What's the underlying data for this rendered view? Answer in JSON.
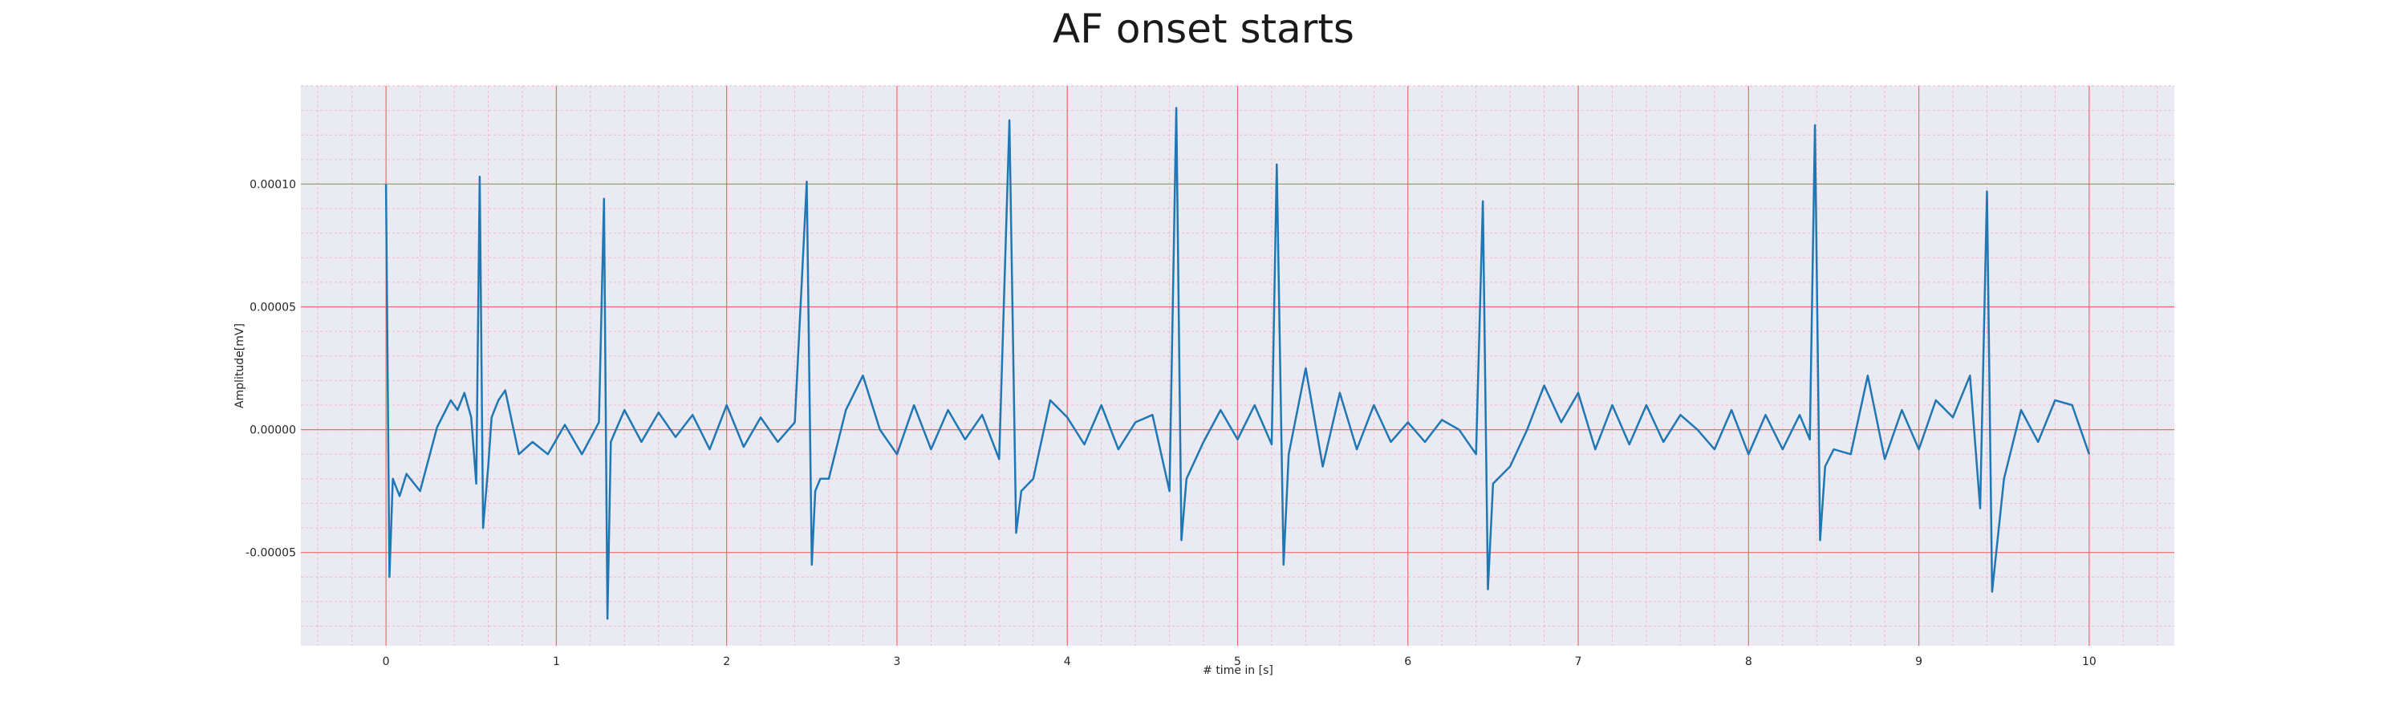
{
  "chart_data": {
    "type": "line",
    "title": "AF onset starts",
    "xlabel": "# time in [s]",
    "ylabel": "Amplitude[mV]",
    "xlim": [
      -0.5,
      10.5
    ],
    "ylim": [
      -8.8e-05,
      0.00014
    ],
    "x_ticks": [
      0,
      1,
      2,
      3,
      4,
      5,
      6,
      7,
      8,
      9,
      10
    ],
    "x_tick_labels": [
      "0",
      "1",
      "2",
      "3",
      "4",
      "5",
      "6",
      "7",
      "8",
      "9",
      "10"
    ],
    "y_ticks": [
      -5e-05,
      0.0,
      5e-05,
      0.0001
    ],
    "y_tick_labels": [
      "-0.00005",
      "0.00000",
      "0.00005",
      "0.00010"
    ],
    "grid": true,
    "series": [
      {
        "color": "#1f77b4",
        "x": [
          0.0,
          0.02,
          0.04,
          0.08,
          0.12,
          0.2,
          0.3,
          0.38,
          0.42,
          0.46,
          0.5,
          0.53,
          0.55,
          0.57,
          0.6,
          0.62,
          0.66,
          0.7,
          0.78,
          0.86,
          0.95,
          1.05,
          1.15,
          1.25,
          1.28,
          1.3,
          1.32,
          1.35,
          1.4,
          1.5,
          1.6,
          1.7,
          1.8,
          1.9,
          2.0,
          2.1,
          2.2,
          2.3,
          2.4,
          2.47,
          2.5,
          2.52,
          2.55,
          2.6,
          2.7,
          2.8,
          2.9,
          3.0,
          3.1,
          3.2,
          3.3,
          3.4,
          3.5,
          3.6,
          3.66,
          3.7,
          3.73,
          3.8,
          3.9,
          4.0,
          4.1,
          4.2,
          4.3,
          4.4,
          4.5,
          4.6,
          4.64,
          4.67,
          4.7,
          4.8,
          4.9,
          5.0,
          5.1,
          5.2,
          5.23,
          5.27,
          5.3,
          5.4,
          5.5,
          5.6,
          5.7,
          5.8,
          5.9,
          6.0,
          6.1,
          6.2,
          6.3,
          6.4,
          6.44,
          6.47,
          6.5,
          6.6,
          6.7,
          6.8,
          6.9,
          7.0,
          7.1,
          7.2,
          7.3,
          7.4,
          7.5,
          7.6,
          7.7,
          7.8,
          7.9,
          8.0,
          8.1,
          8.2,
          8.3,
          8.36,
          8.39,
          8.42,
          8.45,
          8.5,
          8.6,
          8.7,
          8.8,
          8.9,
          9.0,
          9.1,
          9.2,
          9.3,
          9.36,
          9.4,
          9.43,
          9.5,
          9.6,
          9.7,
          9.8,
          9.9,
          10.0
        ],
        "values": [
          0.0001,
          -6e-05,
          -2e-05,
          -2.7e-05,
          -1.8e-05,
          -2.5e-05,
          1e-06,
          1.2e-05,
          8e-06,
          1.5e-05,
          5e-06,
          -2.2e-05,
          0.000103,
          -4e-05,
          -1.5e-05,
          5e-06,
          1.2e-05,
          1.6e-05,
          -1e-05,
          -5e-06,
          -1e-05,
          2e-06,
          -1e-05,
          3e-06,
          9.4e-05,
          -7.7e-05,
          -5e-06,
          0.0,
          8e-06,
          -5e-06,
          7e-06,
          -3e-06,
          6e-06,
          -8e-06,
          1e-05,
          -7e-06,
          5e-06,
          -5e-06,
          3e-06,
          0.000101,
          -5.5e-05,
          -2.5e-05,
          -2e-05,
          -2e-05,
          8e-06,
          2.2e-05,
          0.0,
          -1e-05,
          1e-05,
          -8e-06,
          8e-06,
          -4e-06,
          6e-06,
          -1.2e-05,
          0.000126,
          -4.2e-05,
          -2.5e-05,
          -2e-05,
          1.2e-05,
          5e-06,
          -6e-06,
          1e-05,
          -8e-06,
          3e-06,
          6e-06,
          -2.5e-05,
          0.000131,
          -4.5e-05,
          -2e-05,
          -5e-06,
          8e-06,
          -4e-06,
          1e-05,
          -6e-06,
          0.000108,
          -5.5e-05,
          -1e-05,
          2.5e-05,
          -1.5e-05,
          1.5e-05,
          -8e-06,
          1e-05,
          -5e-06,
          3e-06,
          -5e-06,
          4e-06,
          0.0,
          -1e-05,
          9.3e-05,
          -6.5e-05,
          -2.2e-05,
          -1.5e-05,
          0.0,
          1.8e-05,
          3e-06,
          1.5e-05,
          -8e-06,
          1e-05,
          -6e-06,
          1e-05,
          -5e-06,
          6e-06,
          0.0,
          -8e-06,
          8e-06,
          -1e-05,
          6e-06,
          -8e-06,
          6e-06,
          -4e-06,
          0.000124,
          -4.5e-05,
          -1.5e-05,
          -8e-06,
          -1e-05,
          2.2e-05,
          -1.2e-05,
          8e-06,
          -8e-06,
          1.2e-05,
          5e-06,
          2.2e-05,
          -3.2e-05,
          9.7e-05,
          -6.6e-05,
          -2e-05,
          8e-06,
          -5e-06,
          1.2e-05,
          1e-05,
          -1e-05
        ]
      }
    ]
  }
}
